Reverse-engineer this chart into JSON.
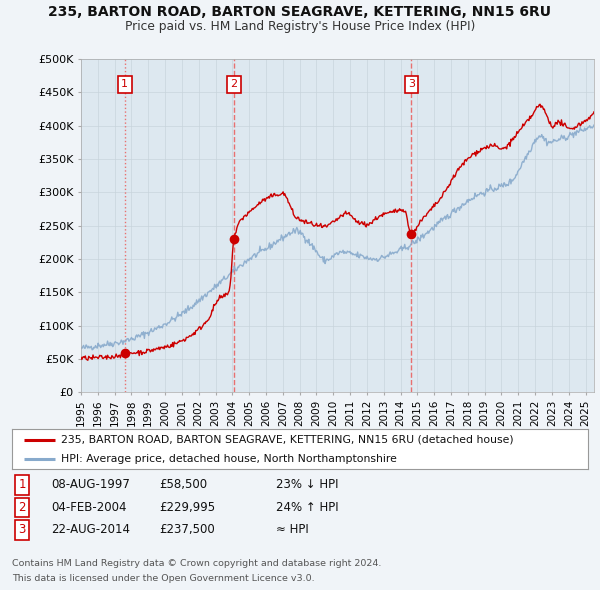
{
  "title1": "235, BARTON ROAD, BARTON SEAGRAVE, KETTERING, NN15 6RU",
  "title2": "Price paid vs. HM Land Registry's House Price Index (HPI)",
  "xlim": [
    1995.0,
    2025.5
  ],
  "ylim": [
    0,
    500000
  ],
  "yticks": [
    0,
    50000,
    100000,
    150000,
    200000,
    250000,
    300000,
    350000,
    400000,
    450000,
    500000
  ],
  "ytick_labels": [
    "£0",
    "£50K",
    "£100K",
    "£150K",
    "£200K",
    "£250K",
    "£300K",
    "£350K",
    "£400K",
    "£450K",
    "£500K"
  ],
  "xticks": [
    1995,
    1996,
    1997,
    1998,
    1999,
    2000,
    2001,
    2002,
    2003,
    2004,
    2005,
    2006,
    2007,
    2008,
    2009,
    2010,
    2011,
    2012,
    2013,
    2014,
    2015,
    2016,
    2017,
    2018,
    2019,
    2020,
    2021,
    2022,
    2023,
    2024,
    2025
  ],
  "sale_dates": [
    1997.6,
    2004.09,
    2014.64
  ],
  "sale_prices": [
    58500,
    229995,
    237500
  ],
  "sale_labels": [
    "1",
    "2",
    "3"
  ],
  "vline_color": "#e87070",
  "vline1_style": ":",
  "vline23_style": "--",
  "dot_color": "#cc0000",
  "red_line_color": "#cc0000",
  "blue_line_color": "#88aacc",
  "legend_red_label": "235, BARTON ROAD, BARTON SEAGRAVE, KETTERING, NN15 6RU (detached house)",
  "legend_blue_label": "HPI: Average price, detached house, North Northamptonshire",
  "table_rows": [
    [
      "1",
      "08-AUG-1997",
      "£58,500",
      "23% ↓ HPI"
    ],
    [
      "2",
      "04-FEB-2004",
      "£229,995",
      "24% ↑ HPI"
    ],
    [
      "3",
      "22-AUG-2014",
      "£237,500",
      "≈ HPI"
    ]
  ],
  "footer1": "Contains HM Land Registry data © Crown copyright and database right 2024.",
  "footer2": "This data is licensed under the Open Government Licence v3.0.",
  "bg_color": "#f0f4f8",
  "plot_bg_color": "#dde8f0",
  "label_box_color": "#cc0000",
  "label_box_facecolor": "white"
}
